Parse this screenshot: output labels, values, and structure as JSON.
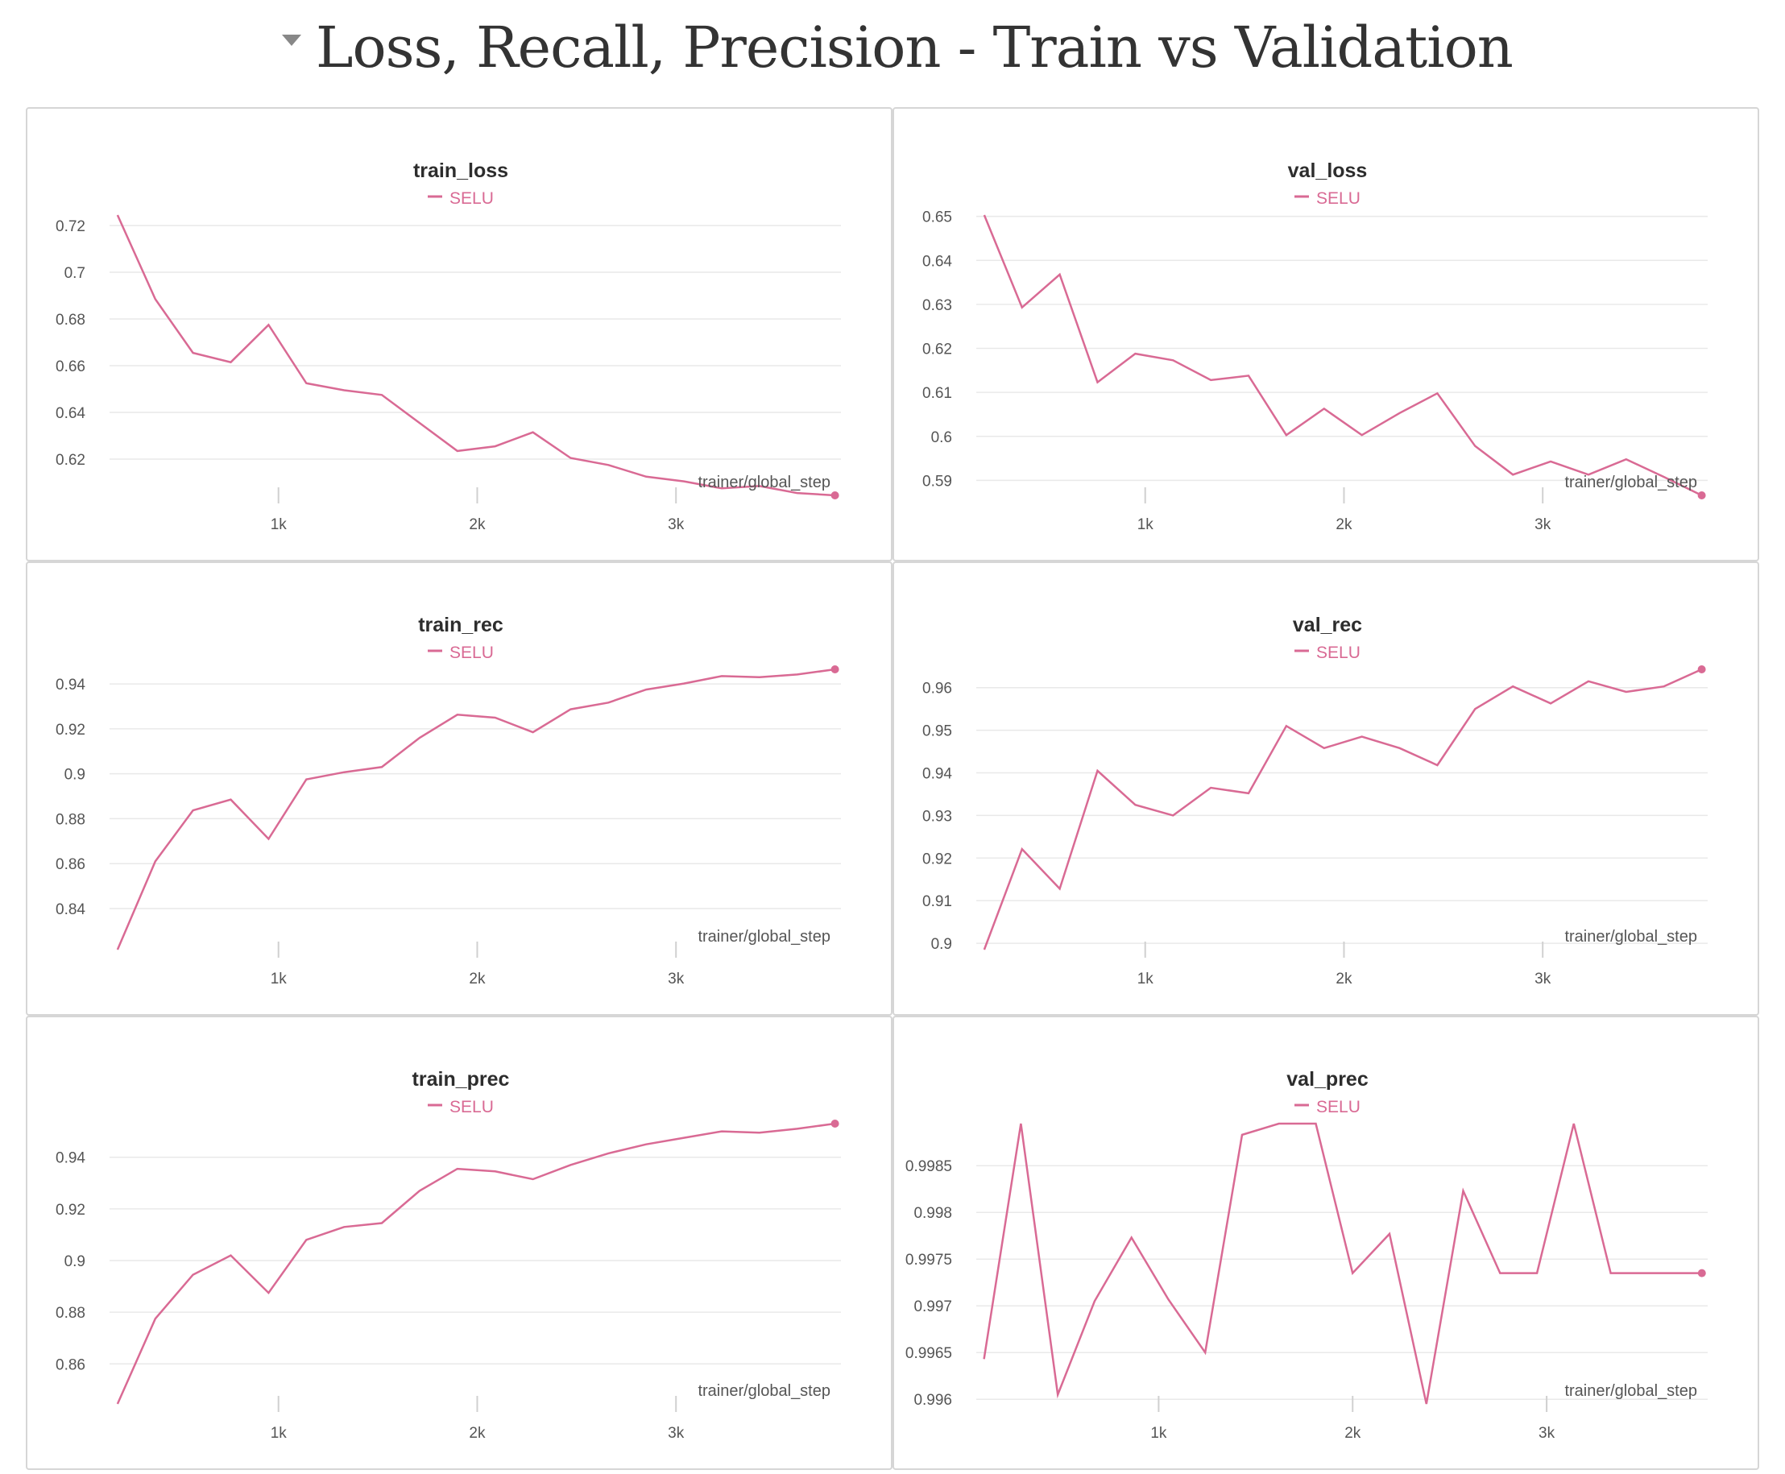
{
  "section": {
    "title": "Loss, Recall, Precision - Train vs Validation"
  },
  "theme": {
    "series_color": "#d96a94",
    "grid_color": "#e9e9e9",
    "text_color": "#555555",
    "title_color": "#2d2d2d"
  },
  "chart_data": [
    {
      "type": "line",
      "title": "train_loss",
      "xlabel": "trainer/global_step",
      "ylabel": "",
      "xlim": [
        150,
        3830
      ],
      "ylim": [
        0.6045,
        0.7245
      ],
      "xticks": [
        1000,
        2000,
        3000
      ],
      "xtick_labels": [
        "1k",
        "2k",
        "3k"
      ],
      "yticks": [
        0.62,
        0.64,
        0.66,
        0.68,
        0.7,
        0.72
      ],
      "ytick_labels": [
        "0.62",
        "0.64",
        "0.66",
        "0.68",
        "0.7",
        "0.72"
      ],
      "legend_position": "top-center",
      "grid": true,
      "series": [
        {
          "name": "SELU",
          "x": [
            190,
            380,
            570,
            760,
            950,
            1140,
            1330,
            1520,
            1710,
            1900,
            2090,
            2280,
            2470,
            2660,
            2850,
            3040,
            3230,
            3420,
            3610,
            3800
          ],
          "y": [
            0.7245,
            0.6885,
            0.6655,
            0.6615,
            0.6775,
            0.6525,
            0.6495,
            0.6475,
            0.6355,
            0.6235,
            0.6255,
            0.6315,
            0.6205,
            0.6175,
            0.6125,
            0.6105,
            0.6075,
            0.6085,
            0.6055,
            0.6045
          ]
        }
      ]
    },
    {
      "type": "line",
      "title": "val_loss",
      "xlabel": "trainer/global_step",
      "ylabel": "",
      "xlim": [
        150,
        3830
      ],
      "ylim": [
        0.5866,
        0.6503
      ],
      "xticks": [
        1000,
        2000,
        3000
      ],
      "xtick_labels": [
        "1k",
        "2k",
        "3k"
      ],
      "yticks": [
        0.59,
        0.6,
        0.61,
        0.62,
        0.63,
        0.64,
        0.65
      ],
      "ytick_labels": [
        "0.59",
        "0.6",
        "0.61",
        "0.62",
        "0.63",
        "0.64",
        "0.65"
      ],
      "legend_position": "top-center",
      "grid": true,
      "series": [
        {
          "name": "SELU",
          "x": [
            190,
            380,
            570,
            760,
            950,
            1140,
            1330,
            1520,
            1710,
            1900,
            2090,
            2280,
            2470,
            2660,
            2850,
            3040,
            3230,
            3420,
            3610,
            3800
          ],
          "y": [
            0.6503,
            0.6293,
            0.6368,
            0.6123,
            0.6188,
            0.6173,
            0.6128,
            0.6138,
            0.6003,
            0.6063,
            0.6003,
            0.6053,
            0.6098,
            0.5978,
            0.5913,
            0.5943,
            0.5913,
            0.5948,
            0.5908,
            0.5866
          ]
        }
      ]
    },
    {
      "type": "line",
      "title": "train_rec",
      "xlabel": "trainer/global_step",
      "ylabel": "",
      "xlim": [
        150,
        3830
      ],
      "ylim": [
        0.8217,
        0.9465
      ],
      "xticks": [
        1000,
        2000,
        3000
      ],
      "xtick_labels": [
        "1k",
        "2k",
        "3k"
      ],
      "yticks": [
        0.84,
        0.86,
        0.88,
        0.9,
        0.92,
        0.94
      ],
      "ytick_labels": [
        "0.84",
        "0.86",
        "0.88",
        "0.9",
        "0.92",
        "0.94"
      ],
      "legend_position": "top-center",
      "grid": true,
      "series": [
        {
          "name": "SELU",
          "x": [
            190,
            380,
            570,
            760,
            950,
            1140,
            1330,
            1520,
            1710,
            1900,
            2090,
            2280,
            2470,
            2660,
            2850,
            3040,
            3230,
            3420,
            3610,
            3800
          ],
          "y": [
            0.8217,
            0.861,
            0.8837,
            0.8885,
            0.871,
            0.8975,
            0.9007,
            0.903,
            0.916,
            0.9263,
            0.925,
            0.9185,
            0.9287,
            0.9317,
            0.9375,
            0.9402,
            0.9435,
            0.943,
            0.9442,
            0.9465
          ]
        }
      ]
    },
    {
      "type": "line",
      "title": "val_rec",
      "xlabel": "trainer/global_step",
      "ylabel": "",
      "xlim": [
        150,
        3830
      ],
      "ylim": [
        0.8985,
        0.9643
      ],
      "xticks": [
        1000,
        2000,
        3000
      ],
      "xtick_labels": [
        "1k",
        "2k",
        "3k"
      ],
      "yticks": [
        0.9,
        0.91,
        0.92,
        0.93,
        0.94,
        0.95,
        0.96
      ],
      "ytick_labels": [
        "0.9",
        "0.91",
        "0.92",
        "0.93",
        "0.94",
        "0.95",
        "0.96"
      ],
      "legend_position": "top-center",
      "grid": true,
      "series": [
        {
          "name": "SELU",
          "x": [
            190,
            380,
            570,
            760,
            950,
            1140,
            1330,
            1520,
            1710,
            1900,
            2090,
            2280,
            2470,
            2660,
            2850,
            3040,
            3230,
            3420,
            3610,
            3800
          ],
          "y": [
            0.8985,
            0.9221,
            0.9128,
            0.9405,
            0.9325,
            0.93,
            0.9365,
            0.9352,
            0.951,
            0.9458,
            0.9485,
            0.9458,
            0.9418,
            0.955,
            0.9603,
            0.9563,
            0.9615,
            0.959,
            0.9603,
            0.9643
          ]
        }
      ]
    },
    {
      "type": "line",
      "title": "train_prec",
      "xlabel": "trainer/global_step",
      "ylabel": "",
      "xlim": [
        150,
        3830
      ],
      "ylim": [
        0.8445,
        0.953
      ],
      "xticks": [
        1000,
        2000,
        3000
      ],
      "xtick_labels": [
        "1k",
        "2k",
        "3k"
      ],
      "yticks": [
        0.86,
        0.88,
        0.9,
        0.92,
        0.94
      ],
      "ytick_labels": [
        "0.86",
        "0.88",
        "0.9",
        "0.92",
        "0.94"
      ],
      "legend_position": "top-center",
      "grid": true,
      "series": [
        {
          "name": "SELU",
          "x": [
            190,
            380,
            570,
            760,
            950,
            1140,
            1330,
            1520,
            1710,
            1900,
            2090,
            2280,
            2470,
            2660,
            2850,
            3040,
            3230,
            3420,
            3610,
            3800
          ],
          "y": [
            0.8445,
            0.8775,
            0.8945,
            0.902,
            0.8875,
            0.908,
            0.913,
            0.9145,
            0.927,
            0.9355,
            0.9345,
            0.9315,
            0.937,
            0.9415,
            0.945,
            0.9475,
            0.95,
            0.9495,
            0.951,
            0.953
          ]
        }
      ]
    },
    {
      "type": "line",
      "title": "val_prec",
      "xlabel": "trainer/global_step",
      "ylabel": "",
      "xlim": [
        60,
        3830
      ],
      "ylim": [
        0.99595,
        0.99895
      ],
      "xticks": [
        1000,
        2000,
        3000
      ],
      "xtick_labels": [
        "1k",
        "2k",
        "3k"
      ],
      "yticks": [
        0.996,
        0.9965,
        0.997,
        0.9975,
        0.998,
        0.9985
      ],
      "ytick_labels": [
        "0.996",
        "0.9965",
        "0.997",
        "0.9975",
        "0.998",
        "0.9985"
      ],
      "legend_position": "top-center",
      "grid": true,
      "series": [
        {
          "name": "SELU",
          "x": [
            100,
            290,
            480,
            670,
            860,
            1050,
            1240,
            1430,
            1620,
            1810,
            2000,
            2190,
            2380,
            2570,
            2760,
            2950,
            3140,
            3330,
            3520,
            3710,
            3800
          ],
          "y": [
            0.99643,
            0.99895,
            0.99605,
            0.99705,
            0.99773,
            0.99707,
            0.9965,
            0.99883,
            0.99895,
            0.99895,
            0.99735,
            0.99777,
            0.99595,
            0.99823,
            0.99735,
            0.99735,
            0.99895,
            0.99735,
            0.99735,
            0.99735,
            0.99735
          ]
        }
      ]
    }
  ]
}
